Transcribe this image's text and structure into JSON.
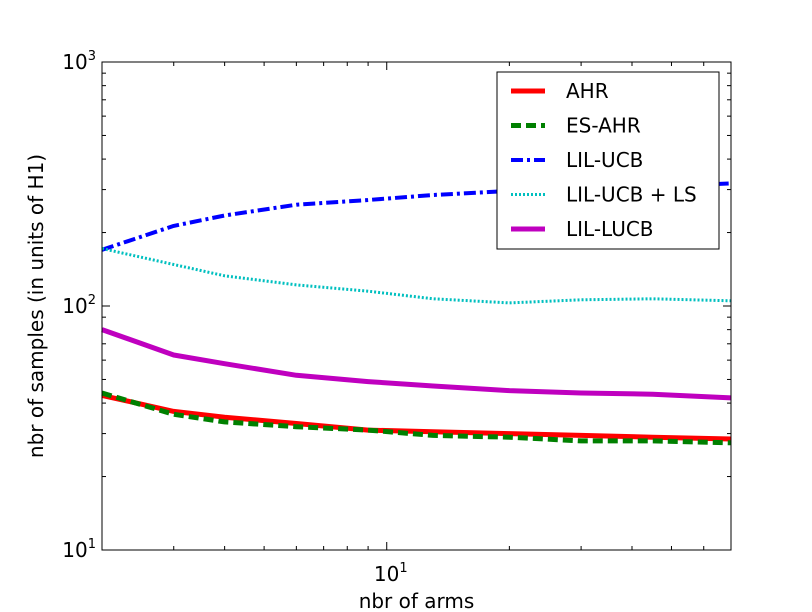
{
  "chart_data": {
    "type": "line",
    "xlabel": "nbr of arms",
    "ylabel": "nbr of samples (in units of H1)",
    "xscale": "log",
    "yscale": "log",
    "xlim": [
      2,
      70
    ],
    "ylim": [
      10,
      1000
    ],
    "x_tick_labels": [
      {
        "base": "10",
        "exp": "1",
        "value": 10
      }
    ],
    "y_tick_labels": [
      {
        "base": "10",
        "exp": "1",
        "value": 10
      },
      {
        "base": "10",
        "exp": "2",
        "value": 100
      },
      {
        "base": "10",
        "exp": "3",
        "value": 1000
      }
    ],
    "legend_position": "top-right",
    "series": [
      {
        "name": "AHR",
        "color": "#ff0000",
        "style": "solid",
        "x": [
          2,
          3,
          4,
          6,
          9,
          13,
          20,
          30,
          45,
          70
        ],
        "y": [
          43,
          37,
          35,
          33,
          31,
          30.5,
          30,
          29.5,
          29,
          28.5
        ]
      },
      {
        "name": "ES-AHR",
        "color": "#008000",
        "style": "dashed",
        "x": [
          2,
          3,
          4,
          6,
          9,
          13,
          20,
          30,
          45,
          70
        ],
        "y": [
          44,
          36,
          33.5,
          32,
          31,
          29.5,
          29,
          28,
          28,
          27.5
        ]
      },
      {
        "name": "LIL-UCB",
        "color": "#0000ff",
        "style": "dashdot",
        "x": [
          2,
          3,
          4,
          6,
          9,
          13,
          20,
          30,
          45,
          70
        ],
        "y": [
          170,
          213,
          235,
          260,
          272,
          285,
          296,
          302,
          308,
          318
        ]
      },
      {
        "name": "LIL-UCB + LS",
        "color": "#00bfbf",
        "style": "dotted",
        "x": [
          2,
          3,
          4,
          6,
          9,
          13,
          20,
          30,
          45,
          70
        ],
        "y": [
          172,
          148,
          133,
          122,
          115,
          107,
          103,
          106,
          107,
          105
        ]
      },
      {
        "name": "LIL-LUCB",
        "color": "#bf00bf",
        "style": "solid",
        "x": [
          2,
          3,
          4,
          6,
          9,
          13,
          20,
          30,
          45,
          70
        ],
        "y": [
          80,
          63,
          58,
          52,
          49,
          47,
          45,
          44,
          43.5,
          42
        ]
      }
    ]
  }
}
